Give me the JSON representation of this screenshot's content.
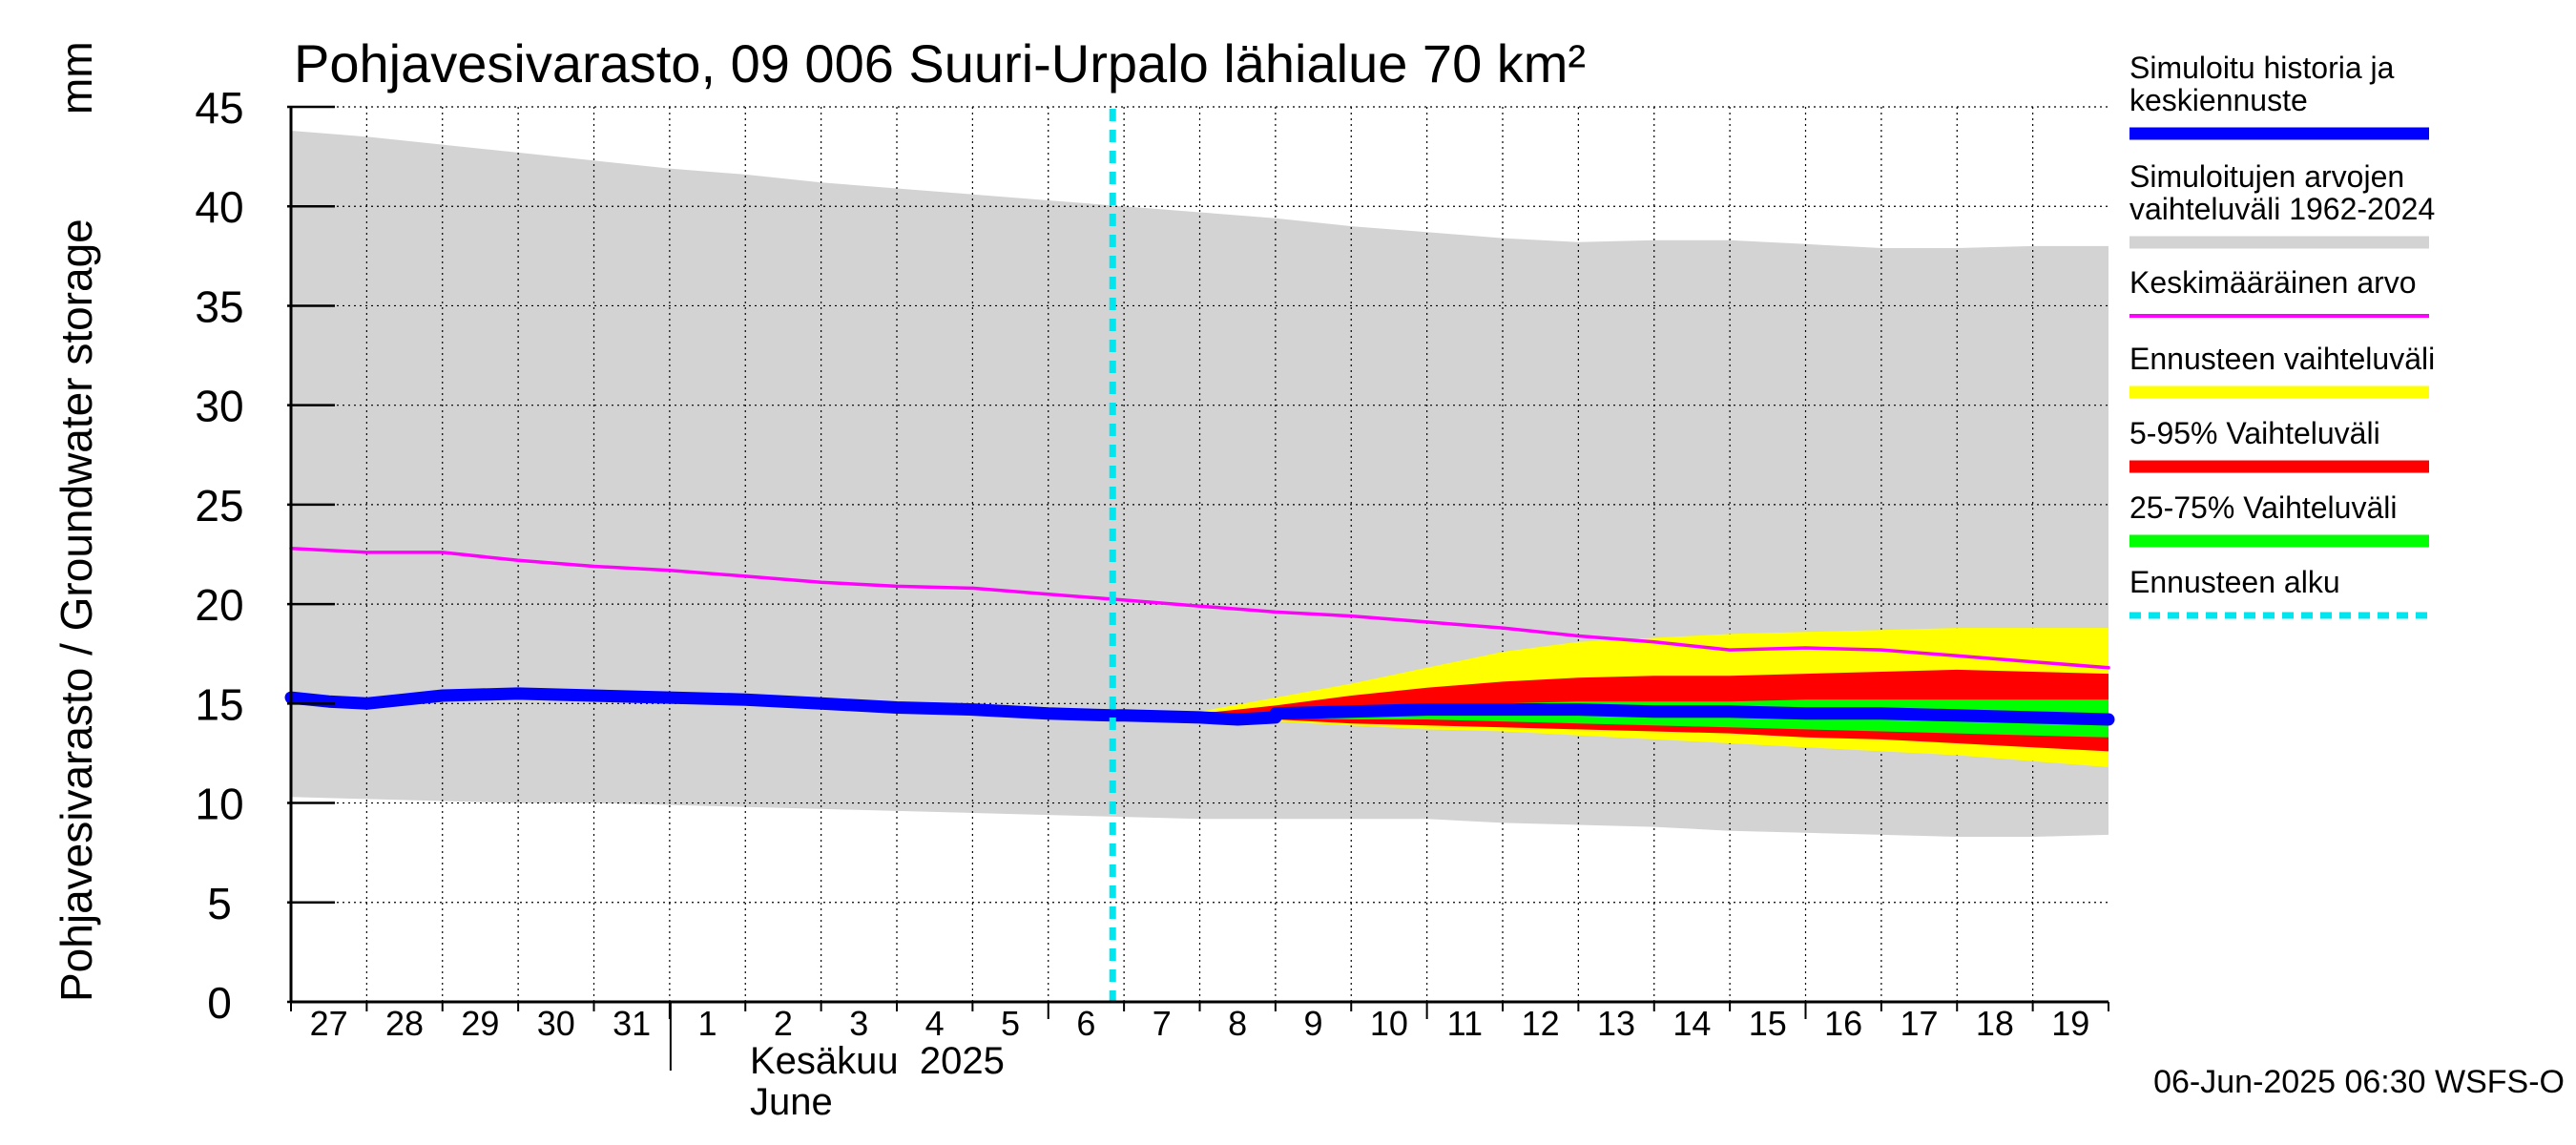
{
  "chart_data": {
    "type": "area",
    "title": "Pohjavesivarasto, 09 006 Suuri-Urpalo lähialue 70 km²",
    "ylabel": "Pohjavesivarasto / Groundwater storage",
    "yunit": "mm",
    "ylim": [
      0,
      45
    ],
    "yticks": [
      0,
      5,
      10,
      15,
      20,
      25,
      30,
      35,
      40,
      45
    ],
    "grid": true,
    "legend_position": "right",
    "x_tick_labels": [
      "27",
      "28",
      "29",
      "30",
      "31",
      "1",
      "2",
      "3",
      "4",
      "5",
      "6",
      "7",
      "8",
      "9",
      "10",
      "11",
      "12",
      "13",
      "14",
      "15",
      "16",
      "17",
      "18",
      "19"
    ],
    "month_label_fi": "Kesäkuu  2025",
    "month_label_en": "June",
    "forecast_start_day": 10.85,
    "footer": "06-Jun-2025 06:30 WSFS-O",
    "colors": {
      "history": "#0000ff",
      "sim_range": "#d3d3d3",
      "mean": "#ff00ff",
      "forecast_range": "#ffff00",
      "p5_95": "#ff0000",
      "p25_75": "#00ff00",
      "forecast_start": "#00e5ee"
    },
    "legend": [
      {
        "label": "Simuloitu historia ja\nkeskiennuste",
        "color": "#0000ff",
        "style": "thick"
      },
      {
        "label": "Simuloitujen arvojen\nvaihteluväli 1962-2024",
        "color": "#d3d3d3",
        "style": "thick"
      },
      {
        "label": "Keskimääräinen arvo",
        "color": "#ff00ff",
        "style": "thin"
      },
      {
        "label": "Ennusteen vaihteluväli",
        "color": "#ffff00",
        "style": "thick"
      },
      {
        "label": "5-95% Vaihteluväli",
        "color": "#ff0000",
        "style": "thick"
      },
      {
        "label": "25-75% Vaihteluväli",
        "color": "#00ff00",
        "style": "thick"
      },
      {
        "label": "Ennusteen alku",
        "color": "#00e5ee",
        "style": "dashed"
      }
    ],
    "series": {
      "sim_range": {
        "x": [
          0,
          1,
          2,
          3,
          4,
          5,
          6,
          7,
          8,
          9,
          10,
          11,
          12,
          13,
          14,
          15,
          16,
          17,
          18,
          19,
          20,
          21,
          22,
          23,
          24
        ],
        "upper": [
          43.8,
          43.5,
          43.1,
          42.7,
          42.3,
          41.9,
          41.6,
          41.2,
          40.9,
          40.6,
          40.3,
          40.0,
          39.7,
          39.4,
          39.0,
          38.7,
          38.4,
          38.2,
          38.3,
          38.3,
          38.1,
          37.9,
          37.9,
          38.0,
          38.0
        ],
        "lower": [
          10.3,
          10.2,
          10.1,
          10.0,
          10.0,
          9.9,
          9.8,
          9.7,
          9.6,
          9.5,
          9.4,
          9.3,
          9.2,
          9.2,
          9.2,
          9.2,
          9.0,
          8.9,
          8.8,
          8.6,
          8.5,
          8.4,
          8.3,
          8.3,
          8.4
        ]
      },
      "mean": {
        "x": [
          0,
          1,
          2,
          3,
          4,
          5,
          6,
          7,
          8,
          9,
          10,
          11,
          12,
          13,
          14,
          15,
          16,
          17,
          18,
          19,
          20,
          21,
          22,
          23,
          24
        ],
        "y": [
          22.8,
          22.6,
          22.6,
          22.2,
          21.9,
          21.7,
          21.4,
          21.1,
          20.9,
          20.8,
          20.5,
          20.2,
          19.9,
          19.6,
          19.4,
          19.1,
          18.8,
          18.4,
          18.1,
          17.7,
          17.8,
          17.7,
          17.4,
          17.1,
          16.8
        ]
      },
      "history": {
        "x": [
          0,
          0.5,
          1,
          1.5,
          2,
          3,
          4,
          5,
          6,
          7,
          8,
          9,
          10,
          10.85,
          11,
          12,
          12.5,
          13
        ],
        "y": [
          15.3,
          15.1,
          15.0,
          15.2,
          15.4,
          15.5,
          15.4,
          15.3,
          15.2,
          15.0,
          14.8,
          14.7,
          14.5,
          14.4,
          14.4,
          14.3,
          14.2,
          14.3
        ]
      },
      "median_forecast": {
        "x": [
          13,
          14,
          15,
          16,
          17,
          18,
          19,
          20,
          21,
          22,
          23,
          24
        ],
        "y": [
          14.5,
          14.6,
          14.7,
          14.7,
          14.7,
          14.6,
          14.6,
          14.5,
          14.5,
          14.4,
          14.3,
          14.2
        ]
      },
      "forecast_range": {
        "x": [
          12,
          13,
          14,
          15,
          16,
          17,
          18,
          19,
          20,
          21,
          22,
          23,
          24
        ],
        "upper": [
          14.6,
          15.3,
          16.0,
          16.8,
          17.6,
          18.1,
          18.3,
          18.5,
          18.6,
          18.7,
          18.8,
          18.8,
          18.8
        ],
        "lower": [
          14.3,
          14.1,
          13.9,
          13.7,
          13.6,
          13.4,
          13.2,
          13.0,
          12.8,
          12.6,
          12.4,
          12.1,
          11.8
        ]
      },
      "p5_95": {
        "x": [
          12,
          13,
          14,
          15,
          16,
          17,
          18,
          19,
          20,
          21,
          22,
          23,
          24
        ],
        "upper": [
          14.5,
          14.9,
          15.4,
          15.8,
          16.1,
          16.3,
          16.4,
          16.4,
          16.5,
          16.6,
          16.7,
          16.6,
          16.5
        ],
        "lower": [
          14.3,
          14.2,
          14.0,
          13.9,
          13.8,
          13.7,
          13.6,
          13.5,
          13.3,
          13.2,
          13.0,
          12.8,
          12.6
        ]
      },
      "p25_75": {
        "x": [
          12,
          13,
          14,
          15,
          16,
          17,
          18,
          19,
          20,
          21,
          22,
          23,
          24
        ],
        "upper": [
          14.4,
          14.6,
          14.8,
          15.0,
          15.0,
          15.1,
          15.1,
          15.1,
          15.2,
          15.2,
          15.2,
          15.2,
          15.2
        ],
        "lower": [
          14.3,
          14.3,
          14.2,
          14.2,
          14.1,
          14.0,
          13.9,
          13.8,
          13.7,
          13.6,
          13.5,
          13.4,
          13.3
        ]
      }
    }
  }
}
